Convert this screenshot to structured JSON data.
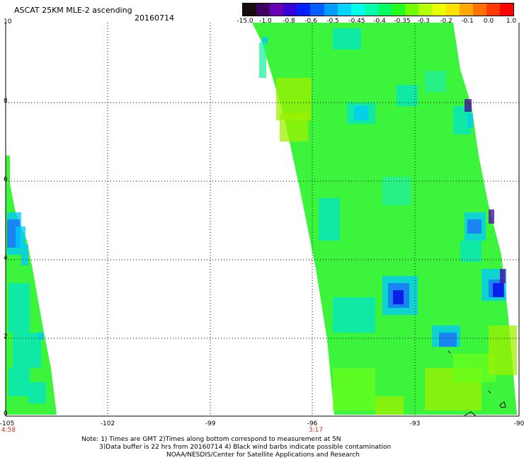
{
  "header": {
    "title": "ASCAT 25KM MLE-2 ascending",
    "date": "20160714"
  },
  "colorbar": {
    "labels": [
      "-15.0",
      "-1.0",
      "-0.8",
      "-0.6",
      "-0.5",
      "-0.45",
      "-0.4",
      "-0.35",
      "-0.3",
      "-0.2",
      "-0.1",
      "0.0",
      "1.0"
    ],
    "colors": [
      "#1a0b12",
      "#3d0060",
      "#6a00b4",
      "#3a00d8",
      "#0020ff",
      "#0060ff",
      "#009cff",
      "#00d4ff",
      "#00ffe8",
      "#00ffa8",
      "#00ff60",
      "#20ff20",
      "#70ff00",
      "#b4ff00",
      "#e8ff00",
      "#ffe000",
      "#ffa800",
      "#ff7000",
      "#ff3a00",
      "#ff0000"
    ]
  },
  "axes": {
    "y_ticks": [
      "0",
      "2",
      "4",
      "6",
      "8",
      "10"
    ],
    "x_ticks": [
      "-105",
      "-102",
      "-99",
      "-96",
      "-93",
      "-90"
    ],
    "time_labels": [
      "4:58",
      "3:17"
    ]
  },
  "notes": [
    "Note: 1) Times are GMT 2)Times along bottom correspond to measurement at 5N",
    "3)Data buffer is 22 hrs from 20160714 4) Black wind barbs indicate possible contamination",
    "NOAA/NESDIS/Center for Satellite Applications and Research"
  ],
  "swaths": {
    "base_color": "#3cf43c",
    "patch_colors": [
      "#00e6c8",
      "#00c8ff",
      "#1e6bff",
      "#0000e6",
      "#9cf000",
      "#6aff1e",
      "#22f0a0",
      "#4a00a0"
    ]
  }
}
